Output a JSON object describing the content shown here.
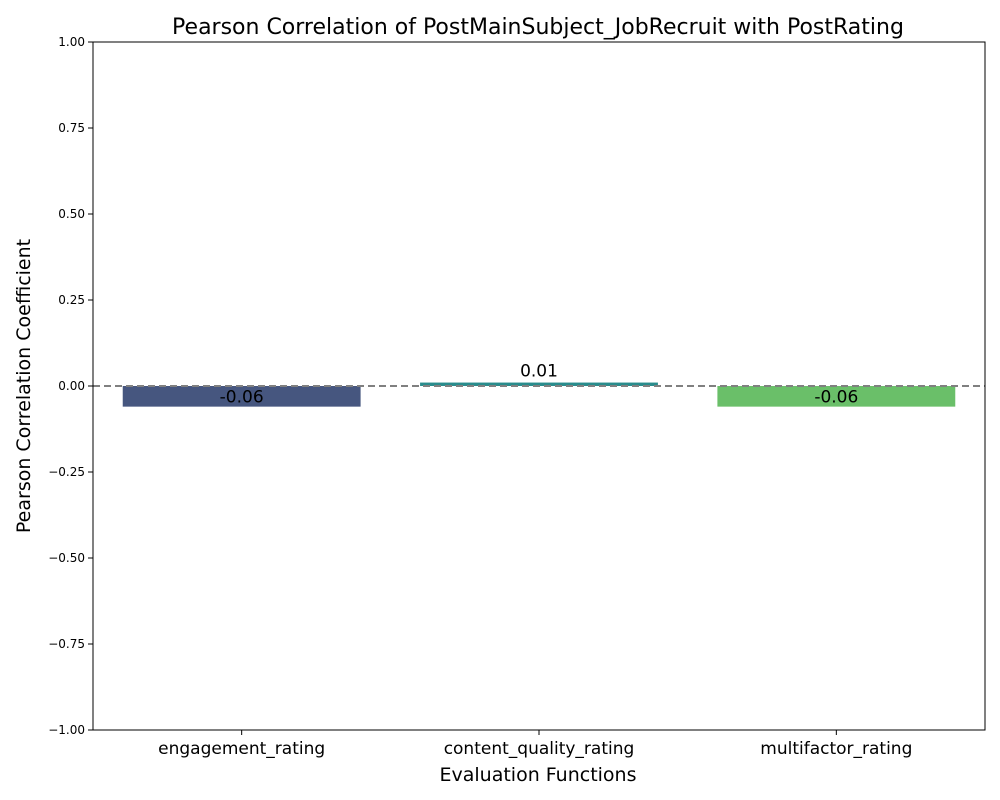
{
  "chart_data": {
    "type": "bar",
    "title": "Pearson Correlation of PostMainSubject_JobRecruit with PostRating",
    "xlabel": "Evaluation Functions",
    "ylabel": "Pearson Correlation Coefficient",
    "categories": [
      "engagement_rating",
      "content_quality_rating",
      "multifactor_rating"
    ],
    "values": [
      -0.06,
      0.01,
      -0.06
    ],
    "value_labels": [
      "-0.06",
      "0.01",
      "-0.06"
    ],
    "colors": [
      "#46567f",
      "#2a8c8c",
      "#6abf69"
    ],
    "ylim": [
      -1.0,
      1.0
    ],
    "yticks": [
      1.0,
      0.75,
      0.5,
      0.25,
      0.0,
      -0.25,
      -0.5,
      -0.75,
      -1.0
    ],
    "ytick_labels": [
      "1.00",
      "0.75",
      "0.50",
      "0.25",
      "0.00",
      "−0.25",
      "−0.50",
      "−0.75",
      "−1.00"
    ],
    "reference_line": {
      "y": 0.0,
      "style": "dashed",
      "color": "#808080"
    },
    "grid": false,
    "legend": "none"
  }
}
